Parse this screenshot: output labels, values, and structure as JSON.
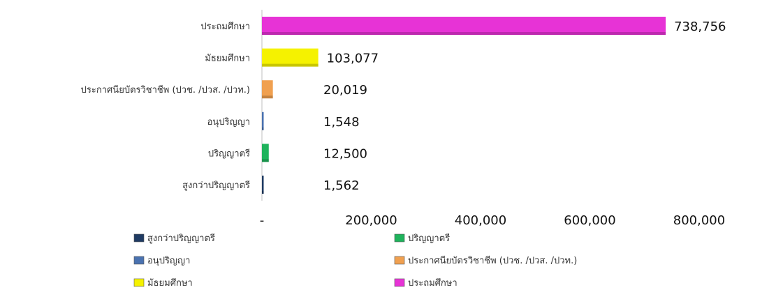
{
  "chart_data": {
    "type": "bar",
    "orientation": "horizontal",
    "categories": [
      "ประถมศึกษา",
      "มัธยมศึกษา",
      "ประกาศนียบัตรวิชาชีพ (ปวช. /ปวส. /ปวท.)",
      "อนุปริญญา",
      "ปริญญาตรี",
      "สูงกว่าปริญญาตรี"
    ],
    "values": [
      738756,
      103077,
      20019,
      1548,
      12500,
      1562
    ],
    "value_labels": [
      "738,756",
      "103,077",
      "20,019",
      "1,548",
      "12,500",
      "1,562"
    ],
    "colors": [
      "#e733d6",
      "#f5f200",
      "#f0a050",
      "#4a72b0",
      "#1fb35c",
      "#1f3b63"
    ],
    "xlim": [
      0,
      800000
    ],
    "x_ticks": [
      0,
      200000,
      400000,
      600000,
      800000
    ],
    "x_tick_labels": [
      "-",
      "200,000",
      "400,000",
      "600,000",
      "800,000"
    ],
    "grid": false,
    "legend_position": "bottom",
    "legend": [
      {
        "label": "สูงกว่าปริญญาตรี",
        "color": "#1f3b63"
      },
      {
        "label": "ปริญญาตรี",
        "color": "#1fb35c"
      },
      {
        "label": "อนุปริญญา",
        "color": "#4a72b0"
      },
      {
        "label": "ประกาศนียบัตรวิชาชีพ (ปวช. /ปวส. /ปวท.)",
        "color": "#f0a050"
      },
      {
        "label": "มัธยมศึกษา",
        "color": "#f5f200"
      },
      {
        "label": "ประถมศึกษา",
        "color": "#e733d6"
      }
    ]
  }
}
